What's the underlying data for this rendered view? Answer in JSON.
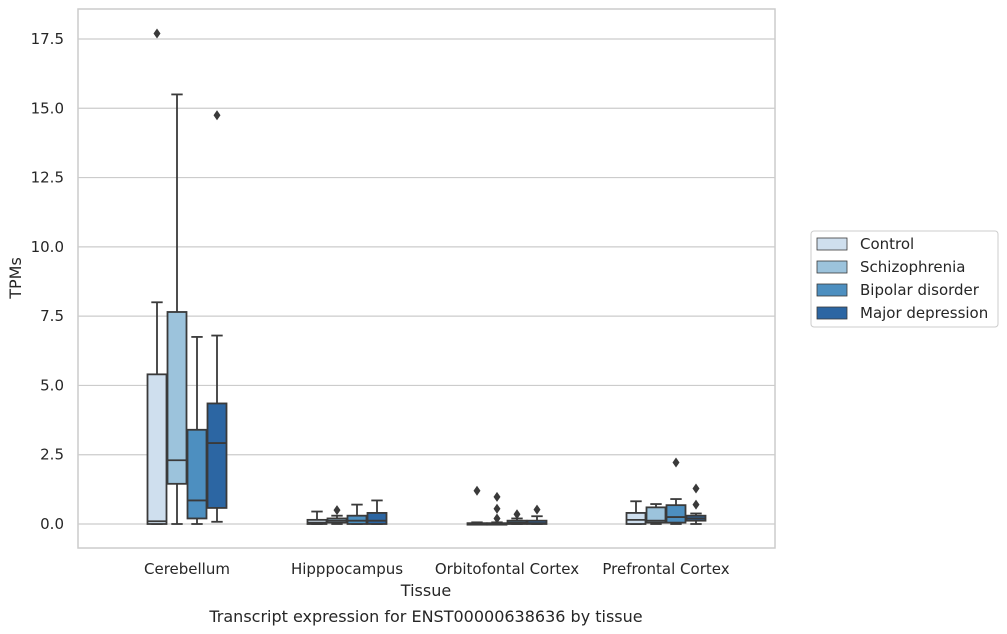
{
  "caption": "Transcript expression for ENST00000638636 by tissue",
  "chart_data": {
    "type": "box",
    "xlabel": "Tissue",
    "ylabel": "TPMs",
    "ylim": [
      -0.85,
      18.6
    ],
    "yticks": [
      0.0,
      2.5,
      5.0,
      7.5,
      10.0,
      12.5,
      15.0,
      17.5
    ],
    "ytick_labels": [
      "0.0",
      "2.5",
      "5.0",
      "7.5",
      "10.0",
      "12.5",
      "15.0",
      "17.5"
    ],
    "grid": "horizontal",
    "legend_position": "right",
    "categories": [
      "Cerebellum",
      "Hipppocampus",
      "Orbitofontal Cortex",
      "Prefrontal Cortex"
    ],
    "series": [
      {
        "name": "Control",
        "color": "#cfdfee",
        "boxes": [
          {
            "whisker_low": 0.0,
            "q1": 0.0,
            "median": 0.1,
            "q3": 5.4,
            "whisker_high": 8.0,
            "outliers": [
              17.7
            ]
          },
          {
            "whisker_low": 0.0,
            "q1": 0.0,
            "median": 0.05,
            "q3": 0.15,
            "whisker_high": 0.45,
            "outliers": []
          },
          {
            "whisker_low": 0.0,
            "q1": 0.0,
            "median": 0.0,
            "q3": 0.03,
            "whisker_high": 0.06,
            "outliers": [
              1.2
            ]
          },
          {
            "whisker_low": 0.0,
            "q1": 0.0,
            "median": 0.15,
            "q3": 0.4,
            "whisker_high": 0.82,
            "outliers": []
          }
        ]
      },
      {
        "name": "Schizophrenia",
        "color": "#9cc3dc",
        "boxes": [
          {
            "whisker_low": 0.0,
            "q1": 1.45,
            "median": 2.3,
            "q3": 7.65,
            "whisker_high": 15.5,
            "outliers": []
          },
          {
            "whisker_low": 0.0,
            "q1": 0.05,
            "median": 0.12,
            "q3": 0.2,
            "whisker_high": 0.3,
            "outliers": [
              0.5
            ]
          },
          {
            "whisker_low": 0.0,
            "q1": 0.0,
            "median": 0.0,
            "q3": 0.03,
            "whisker_high": 0.06,
            "outliers": [
              0.2,
              0.55,
              0.98
            ]
          },
          {
            "whisker_low": 0.0,
            "q1": 0.05,
            "median": 0.12,
            "q3": 0.6,
            "whisker_high": 0.72,
            "outliers": []
          }
        ]
      },
      {
        "name": "Bipolar disorder",
        "color": "#4d8fc0",
        "boxes": [
          {
            "whisker_low": 0.0,
            "q1": 0.2,
            "median": 0.85,
            "q3": 3.4,
            "whisker_high": 6.75,
            "outliers": []
          },
          {
            "whisker_low": 0.0,
            "q1": 0.0,
            "median": 0.12,
            "q3": 0.3,
            "whisker_high": 0.7,
            "outliers": []
          },
          {
            "whisker_low": 0.0,
            "q1": 0.0,
            "median": 0.05,
            "q3": 0.12,
            "whisker_high": 0.2,
            "outliers": [
              0.35
            ]
          },
          {
            "whisker_low": 0.0,
            "q1": 0.05,
            "median": 0.25,
            "q3": 0.68,
            "whisker_high": 0.9,
            "outliers": [
              2.22
            ]
          }
        ]
      },
      {
        "name": "Major depression",
        "color": "#2c66a3",
        "boxes": [
          {
            "whisker_low": 0.08,
            "q1": 0.58,
            "median": 2.92,
            "q3": 4.35,
            "whisker_high": 6.8,
            "outliers": [
              14.75
            ]
          },
          {
            "whisker_low": 0.0,
            "q1": 0.0,
            "median": 0.12,
            "q3": 0.4,
            "whisker_high": 0.85,
            "outliers": []
          },
          {
            "whisker_low": 0.0,
            "q1": 0.0,
            "median": 0.03,
            "q3": 0.12,
            "whisker_high": 0.28,
            "outliers": [
              0.52
            ]
          },
          {
            "whisker_low": 0.0,
            "q1": 0.12,
            "median": 0.2,
            "q3": 0.3,
            "whisker_high": 0.38,
            "outliers": [
              0.7,
              1.28
            ]
          }
        ]
      }
    ]
  }
}
